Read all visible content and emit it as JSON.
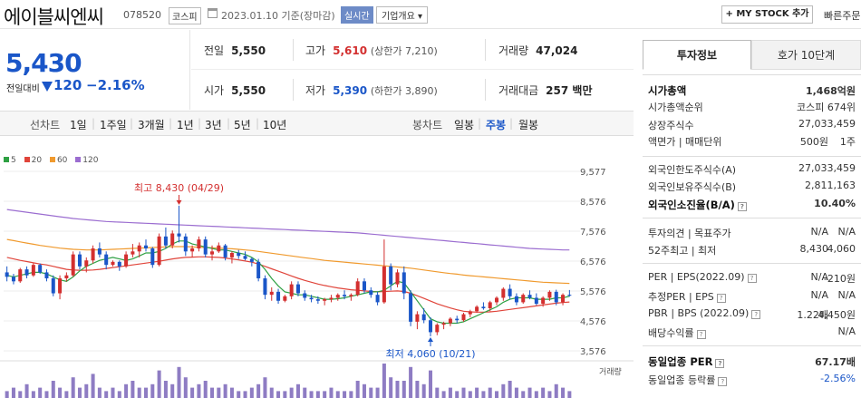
{
  "header": {
    "name": "에이블씨엔씨",
    "code": "078520",
    "market": "코스피",
    "date": "2023.01.10 기준(장마감)",
    "realtime": "실시간",
    "corp_summary": "기업개요 ▾",
    "my_stock": "+ MY STOCK 추가",
    "quick_order": "빠른주문"
  },
  "price": {
    "current": "5,430",
    "change_label": "전일대비",
    "change": "120",
    "change_pct": "−2.16%",
    "color": "#1a56c8"
  },
  "stats": {
    "prev_label": "전일",
    "prev": "5,550",
    "high_label": "고가",
    "high": "5,610",
    "upper_limit": "(상한가 7,210)",
    "volume_label": "거래량",
    "volume": "47,024",
    "open_label": "시가",
    "open": "5,550",
    "low_label": "저가",
    "low": "5,390",
    "lower_limit": "(하한가 3,890)",
    "amount_label": "거래대금",
    "amount": "257 백만"
  },
  "toolbar": {
    "line_label": "선차트",
    "periods": [
      "1일",
      "1주일",
      "3개월",
      "1년",
      "3년",
      "5년",
      "10년"
    ],
    "candle_label": "봉차트",
    "candles": [
      "일봉",
      "주봉",
      "월봉"
    ],
    "active_candle": "주봉"
  },
  "chart_data": {
    "type": "candlestick",
    "legend": [
      {
        "name": "5",
        "color": "#2ea043"
      },
      {
        "name": "20",
        "color": "#e0443a"
      },
      {
        "name": "60",
        "color": "#f09a2e"
      },
      {
        "name": "120",
        "color": "#9b6dd0"
      }
    ],
    "y_ticks": [
      9577,
      8576,
      7576,
      6576,
      5576,
      4576,
      3576
    ],
    "y_tick_labels": [
      "9,577",
      "8,576",
      "7,576",
      "6,576",
      "5,576",
      "4,576",
      "3,576"
    ],
    "ylim": [
      3576,
      9577
    ],
    "high_note": "최고 8,430 (04/29)",
    "low_note": "최저 4,060 (10/21)",
    "volume_label": "거래량",
    "candles": [
      [
        6200,
        6400,
        5900,
        6050
      ],
      [
        6050,
        6150,
        5800,
        5900
      ],
      [
        5900,
        6350,
        5850,
        6300
      ],
      [
        6300,
        6400,
        6000,
        6100
      ],
      [
        6100,
        6500,
        6050,
        6450
      ],
      [
        6450,
        6500,
        6150,
        6200
      ],
      [
        6200,
        6300,
        5900,
        6000
      ],
      [
        6000,
        6100,
        5400,
        5500
      ],
      [
        5500,
        6100,
        5300,
        6000
      ],
      [
        6000,
        6200,
        5900,
        6100
      ],
      [
        6100,
        6900,
        6050,
        6800
      ],
      [
        6800,
        6900,
        6300,
        6400
      ],
      [
        6400,
        6700,
        6200,
        6600
      ],
      [
        6600,
        7100,
        6500,
        7000
      ],
      [
        7000,
        7200,
        6700,
        6800
      ],
      [
        6800,
        6900,
        6300,
        6450
      ],
      [
        6450,
        6600,
        6400,
        6550
      ],
      [
        6550,
        6600,
        6250,
        6400
      ],
      [
        6400,
        6900,
        6350,
        6800
      ],
      [
        6800,
        7150,
        6700,
        6900
      ],
      [
        6900,
        7200,
        6700,
        7100
      ],
      [
        7100,
        7300,
        6900,
        7000
      ],
      [
        7000,
        7050,
        6350,
        6450
      ],
      [
        6450,
        7500,
        6400,
        7400
      ],
      [
        7400,
        7700,
        7000,
        7100
      ],
      [
        7100,
        7600,
        7000,
        7500
      ],
      [
        7500,
        8430,
        7200,
        7400
      ],
      [
        7400,
        7500,
        6750,
        6900
      ],
      [
        6900,
        7100,
        6700,
        7000
      ],
      [
        7000,
        7400,
        6900,
        7300
      ],
      [
        7300,
        7400,
        6700,
        6800
      ],
      [
        6800,
        7100,
        6600,
        6900
      ],
      [
        6900,
        7200,
        6850,
        7100
      ],
      [
        7100,
        7150,
        6600,
        6700
      ],
      [
        6700,
        6900,
        6500,
        6850
      ],
      [
        6850,
        6950,
        6650,
        6750
      ],
      [
        6750,
        6900,
        6600,
        6650
      ],
      [
        6650,
        6700,
        6400,
        6550
      ],
      [
        6550,
        6650,
        5900,
        6000
      ],
      [
        6000,
        6100,
        5300,
        5450
      ],
      [
        5450,
        5700,
        5250,
        5550
      ],
      [
        5550,
        5650,
        5150,
        5250
      ],
      [
        5250,
        5450,
        5200,
        5400
      ],
      [
        5400,
        5900,
        5300,
        5800
      ],
      [
        5800,
        5900,
        5400,
        5500
      ],
      [
        5500,
        5600,
        5250,
        5350
      ],
      [
        5350,
        5450,
        5200,
        5300
      ],
      [
        5300,
        5400,
        5150,
        5250
      ],
      [
        5250,
        5350,
        5100,
        5300
      ],
      [
        5300,
        5450,
        5200,
        5350
      ],
      [
        5350,
        5500,
        5250,
        5450
      ],
      [
        5450,
        5600,
        5300,
        5400
      ],
      [
        5400,
        5500,
        5250,
        5450
      ],
      [
        5450,
        6000,
        5400,
        5900
      ],
      [
        5900,
        6000,
        5500,
        5600
      ],
      [
        5600,
        5700,
        5350,
        5450
      ],
      [
        5450,
        5550,
        5100,
        5200
      ],
      [
        5200,
        7300,
        5150,
        6400
      ],
      [
        6400,
        6500,
        5600,
        5800
      ],
      [
        5800,
        6300,
        5700,
        6200
      ],
      [
        6200,
        6400,
        5300,
        5500
      ],
      [
        5500,
        5600,
        4400,
        4550
      ],
      [
        4550,
        4900,
        4300,
        4800
      ],
      [
        4800,
        5000,
        4500,
        4600
      ],
      [
        4600,
        4700,
        4060,
        4200
      ],
      [
        4200,
        4500,
        4100,
        4450
      ],
      [
        4450,
        4550,
        4300,
        4500
      ],
      [
        4500,
        4700,
        4400,
        4650
      ],
      [
        4650,
        4750,
        4500,
        4600
      ],
      [
        4600,
        4850,
        4550,
        4800
      ],
      [
        4800,
        4950,
        4700,
        4900
      ],
      [
        4900,
        5100,
        4850,
        5050
      ],
      [
        5050,
        5200,
        4950,
        5000
      ],
      [
        5000,
        5250,
        4900,
        5200
      ],
      [
        5200,
        5400,
        5100,
        5350
      ],
      [
        5350,
        5700,
        5250,
        5650
      ],
      [
        5650,
        5800,
        5300,
        5400
      ],
      [
        5400,
        5500,
        5100,
        5200
      ],
      [
        5200,
        5500,
        5150,
        5450
      ],
      [
        5450,
        5600,
        5300,
        5350
      ],
      [
        5350,
        5500,
        5100,
        5150
      ],
      [
        5150,
        5400,
        5050,
        5350
      ],
      [
        5350,
        5600,
        5250,
        5550
      ],
      [
        5550,
        5620,
        5100,
        5200
      ],
      [
        5200,
        5500,
        5100,
        5450
      ],
      [
        5450,
        5610,
        5390,
        5430
      ]
    ],
    "ma5": [
      6100,
      6050,
      6100,
      6150,
      6200,
      6200,
      6150,
      6050,
      5950,
      5900,
      6050,
      6250,
      6400,
      6500,
      6600,
      6650,
      6700,
      6650,
      6600,
      6650,
      6750,
      6850,
      6850,
      6900,
      7000,
      7150,
      7250,
      7250,
      7150,
      7100,
      7050,
      7000,
      6950,
      6950,
      6900,
      6850,
      6800,
      6700,
      6550,
      6300,
      6000,
      5750,
      5550,
      5500,
      5450,
      5450,
      5400,
      5350,
      5300,
      5300,
      5320,
      5350,
      5400,
      5450,
      5500,
      5550,
      5550,
      5600,
      5750,
      5900,
      5850,
      5550,
      5250,
      4950,
      4650,
      4550,
      4500,
      4500,
      4500,
      4550,
      4650,
      4750,
      4850,
      4950,
      5050,
      5200,
      5300,
      5350,
      5350,
      5350,
      5300,
      5300,
      5300,
      5350,
      5350,
      5400
    ],
    "ma20": [
      6700,
      6650,
      6600,
      6560,
      6520,
      6480,
      6450,
      6400,
      6350,
      6300,
      6280,
      6270,
      6270,
      6280,
      6300,
      6330,
      6360,
      6390,
      6420,
      6450,
      6480,
      6510,
      6540,
      6570,
      6610,
      6650,
      6680,
      6700,
      6710,
      6720,
      6720,
      6710,
      6700,
      6680,
      6650,
      6620,
      6580,
      6540,
      6480,
      6400,
      6320,
      6240,
      6160,
      6080,
      6000,
      5930,
      5870,
      5810,
      5760,
      5720,
      5680,
      5650,
      5620,
      5600,
      5580,
      5560,
      5550,
      5560,
      5570,
      5580,
      5560,
      5500,
      5420,
      5330,
      5240,
      5150,
      5080,
      5010,
      4950,
      4900,
      4880,
      4870,
      4870,
      4880,
      4900,
      4930,
      4960,
      4990,
      5020,
      5050,
      5080,
      5110,
      5140,
      5170,
      5190,
      5210
    ],
    "ma60": [
      7300,
      7260,
      7220,
      7180,
      7140,
      7100,
      7070,
      7040,
      7010,
      6990,
      6970,
      6960,
      6950,
      6950,
      6950,
      6960,
      6970,
      6980,
      6990,
      7000,
      7010,
      7020,
      7030,
      7040,
      7050,
      7060,
      7060,
      7060,
      7050,
      7040,
      7030,
      7020,
      7010,
      7000,
      6990,
      6970,
      6950,
      6930,
      6900,
      6870,
      6840,
      6810,
      6780,
      6750,
      6720,
      6690,
      6660,
      6630,
      6600,
      6580,
      6560,
      6540,
      6520,
      6500,
      6480,
      6460,
      6440,
      6420,
      6400,
      6380,
      6360,
      6340,
      6310,
      6280,
      6250,
      6220,
      6190,
      6160,
      6140,
      6110,
      6090,
      6070,
      6050,
      6030,
      6010,
      5990,
      5970,
      5950,
      5930,
      5910,
      5890,
      5870,
      5860,
      5850,
      5840,
      5830
    ],
    "ma120": [
      8300,
      8270,
      8240,
      8210,
      8180,
      8150,
      8120,
      8090,
      8060,
      8030,
      8000,
      7980,
      7960,
      7940,
      7920,
      7900,
      7890,
      7880,
      7870,
      7860,
      7850,
      7840,
      7830,
      7820,
      7810,
      7800,
      7790,
      7780,
      7770,
      7760,
      7750,
      7740,
      7730,
      7720,
      7710,
      7700,
      7690,
      7680,
      7670,
      7660,
      7650,
      7640,
      7630,
      7620,
      7610,
      7600,
      7590,
      7580,
      7570,
      7560,
      7550,
      7540,
      7530,
      7520,
      7500,
      7480,
      7460,
      7440,
      7420,
      7400,
      7380,
      7360,
      7340,
      7320,
      7300,
      7280,
      7260,
      7240,
      7220,
      7200,
      7180,
      7160,
      7140,
      7120,
      7100,
      7080,
      7060,
      7040,
      7020,
      7000,
      6990,
      6980,
      6970,
      6960,
      6950,
      6950
    ],
    "volumes": [
      2,
      3,
      2,
      4,
      2,
      3,
      2,
      5,
      3,
      2,
      6,
      3,
      4,
      7,
      3,
      2,
      3,
      2,
      4,
      5,
      3,
      3,
      4,
      8,
      5,
      4,
      9,
      6,
      3,
      4,
      5,
      3,
      3,
      4,
      3,
      2,
      2,
      3,
      4,
      6,
      3,
      2,
      2,
      3,
      4,
      3,
      2,
      2,
      2,
      3,
      2,
      2,
      2,
      5,
      4,
      3,
      3,
      10,
      6,
      5,
      5,
      9,
      5,
      4,
      8,
      3,
      2,
      3,
      2,
      3,
      2,
      3,
      2,
      3,
      2,
      4,
      5,
      3,
      2,
      3,
      2,
      3,
      2,
      4,
      3,
      2
    ]
  },
  "panel": {
    "tab_active": "투자정보",
    "tab_other": "호가 10단계",
    "rows": [
      {
        "k": "시가총액",
        "v1": "1,468억원",
        "v2": "",
        "bold": true
      },
      {
        "k": "시가총액순위",
        "v1": "코스피 674위",
        "v2": ""
      },
      {
        "k": "상장주식수",
        "v1": "27,033,459",
        "v2": ""
      },
      {
        "k": "액면가 | 매매단위",
        "v1": "500원",
        "v2": "1주"
      },
      {
        "k": "외국인한도주식수(A)",
        "v1": "27,033,459",
        "v2": ""
      },
      {
        "k": "외국인보유주식수(B)",
        "v1": "2,811,163",
        "v2": ""
      },
      {
        "k": "외국인소진율(B/A)",
        "v1": "10.40%",
        "v2": "",
        "bold": true,
        "q": true
      },
      {
        "k": "투자의견 | 목표주가",
        "v1": "N/A",
        "v2": "N/A"
      },
      {
        "k": "52주최고 | 최저",
        "v1": "8,430",
        "v2": "4,060"
      },
      {
        "k": "PER | EPS(2022.09)",
        "v1": "N/A",
        "v2": "-210원",
        "q": true
      },
      {
        "k": "추정PER | EPS",
        "v1": "N/A",
        "v2": "N/A",
        "q": true
      },
      {
        "k": "PBR | BPS (2022.09)",
        "v1": "1.22배",
        "v2": "4,450원",
        "q": true
      },
      {
        "k": "배당수익률",
        "v1": "N/A",
        "v2": "",
        "q": true
      },
      {
        "k": "동일업종 PER",
        "v1": "67.17배",
        "v2": "",
        "bold": true,
        "q": true
      },
      {
        "k": "동일업종 등락률",
        "v1": "-2.56%",
        "v2": "",
        "blue": true,
        "q": true
      }
    ]
  }
}
